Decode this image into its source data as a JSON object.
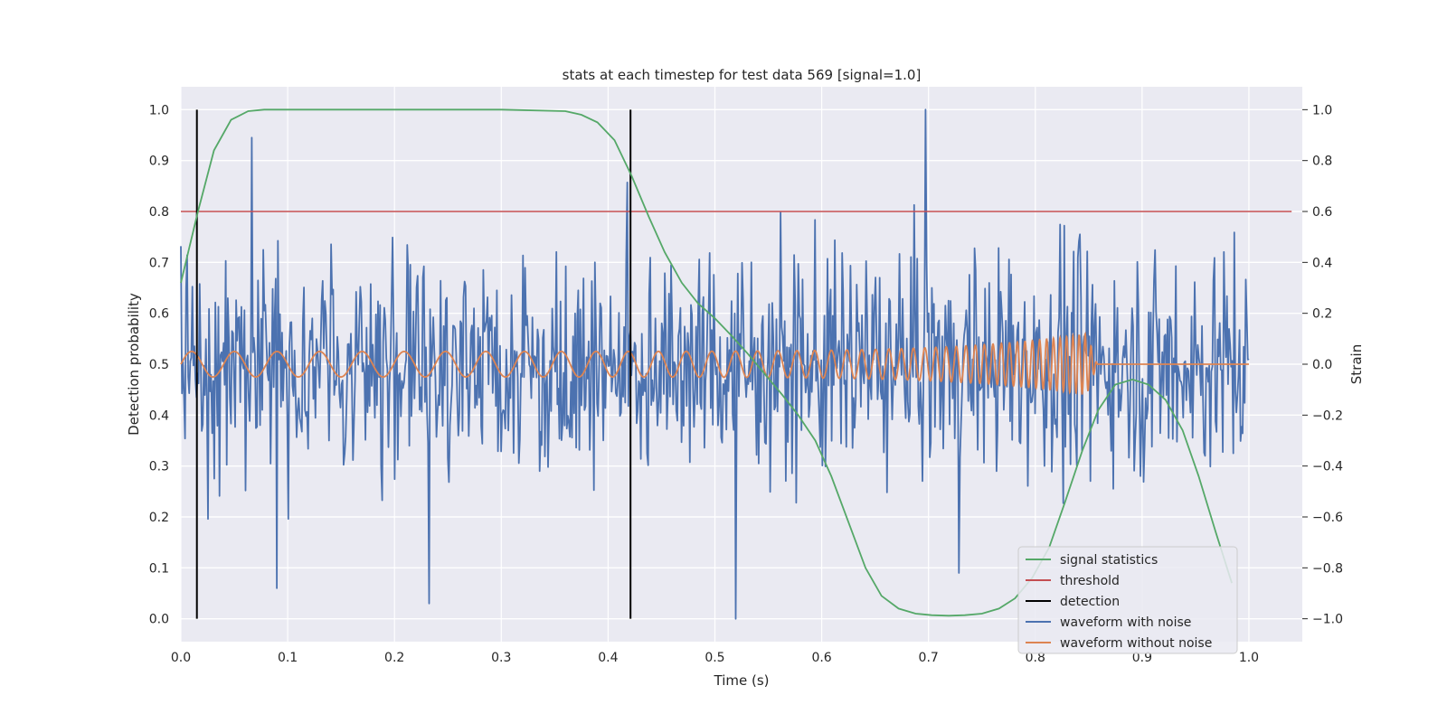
{
  "chart_data": {
    "type": "line",
    "title": "stats at each timestep for test data 569 [signal=1.0]",
    "xlabel": "Time (s)",
    "ylabel_left": "Detection probability",
    "ylabel_right": "Strain",
    "xlim": [
      0.0,
      1.05
    ],
    "ylim_left": [
      -0.045,
      1.045
    ],
    "ylim_right": [
      -1.09,
      1.09
    ],
    "xticks": [
      "0.0",
      "0.1",
      "0.2",
      "0.3",
      "0.4",
      "0.5",
      "0.6",
      "0.7",
      "0.8",
      "0.9",
      "1.0"
    ],
    "yticks_left": [
      "0.0",
      "0.1",
      "0.2",
      "0.3",
      "0.4",
      "0.5",
      "0.6",
      "0.7",
      "0.8",
      "0.9",
      "1.0"
    ],
    "yticks_right": [
      "−1.0",
      "−0.8",
      "−0.6",
      "−0.4",
      "−0.2",
      "0.0",
      "0.2",
      "0.4",
      "0.6",
      "0.8",
      "1.0"
    ],
    "grid": true,
    "legend_position": "lower-right",
    "colors": {
      "signal_statistics": "#55a868",
      "threshold": "#c44e52",
      "detection": "#000000",
      "waveform_with_noise": "#4c72b0",
      "waveform_without_noise": "#dd8452",
      "plot_background": "#eaeaf2",
      "grid": "#ffffff"
    },
    "legend": [
      {
        "label": "signal statistics",
        "color": "#55a868"
      },
      {
        "label": "threshold",
        "color": "#c44e52"
      },
      {
        "label": "detection",
        "color": "#000000"
      },
      {
        "label": "waveform with noise",
        "color": "#4c72b0"
      },
      {
        "label": "waveform without noise",
        "color": "#dd8452"
      }
    ],
    "signal_statistics": {
      "axis": "left",
      "x": [
        0.0,
        0.016,
        0.031,
        0.047,
        0.063,
        0.078,
        0.1,
        0.2,
        0.3,
        0.36,
        0.375,
        0.39,
        0.406,
        0.422,
        0.438,
        0.453,
        0.469,
        0.484,
        0.5,
        0.516,
        0.531,
        0.547,
        0.563,
        0.578,
        0.594,
        0.609,
        0.625,
        0.641,
        0.656,
        0.672,
        0.688,
        0.703,
        0.719,
        0.734,
        0.75,
        0.766,
        0.781,
        0.797,
        0.813,
        0.828,
        0.844,
        0.859,
        0.875,
        0.891,
        0.906,
        0.922,
        0.938,
        0.953,
        0.969,
        0.984
      ],
      "y": [
        0.66,
        0.8,
        0.92,
        0.98,
        0.997,
        1.0,
        1.0,
        1.0,
        1.0,
        0.997,
        0.99,
        0.975,
        0.94,
        0.87,
        0.79,
        0.72,
        0.66,
        0.62,
        0.59,
        0.555,
        0.52,
        0.48,
        0.44,
        0.4,
        0.35,
        0.28,
        0.19,
        0.1,
        0.045,
        0.02,
        0.01,
        0.007,
        0.006,
        0.007,
        0.01,
        0.02,
        0.04,
        0.08,
        0.14,
        0.23,
        0.33,
        0.41,
        0.46,
        0.47,
        0.46,
        0.43,
        0.37,
        0.28,
        0.17,
        0.07
      ]
    },
    "threshold": {
      "axis": "left",
      "value": 0.8,
      "x_range": [
        0.0,
        1.04
      ]
    },
    "detection": {
      "axis": "left",
      "x": [
        0.015,
        0.421
      ],
      "y_range": [
        0.0,
        1.0
      ]
    },
    "waveform_with_noise": {
      "axis": "right",
      "x_range": [
        0.0,
        1.0
      ],
      "approx_std": 0.3,
      "peaks": [
        {
          "x": 0.066,
          "y": 0.89
        },
        {
          "x": 0.09,
          "y": -0.88
        },
        {
          "x": 0.232,
          "y": -0.94
        },
        {
          "x": 0.52,
          "y": -1.0
        },
        {
          "x": 0.697,
          "y": 1.0
        },
        {
          "x": 0.729,
          "y": -0.82
        }
      ]
    },
    "waveform_without_noise": {
      "axis": "right",
      "x_range": [
        0.0,
        1.0
      ],
      "amplitude": 0.05,
      "merger_time": 0.848,
      "peak_amplitude": 0.12,
      "start_frequency_hz": 25,
      "end_frequency_hz": 180
    }
  }
}
